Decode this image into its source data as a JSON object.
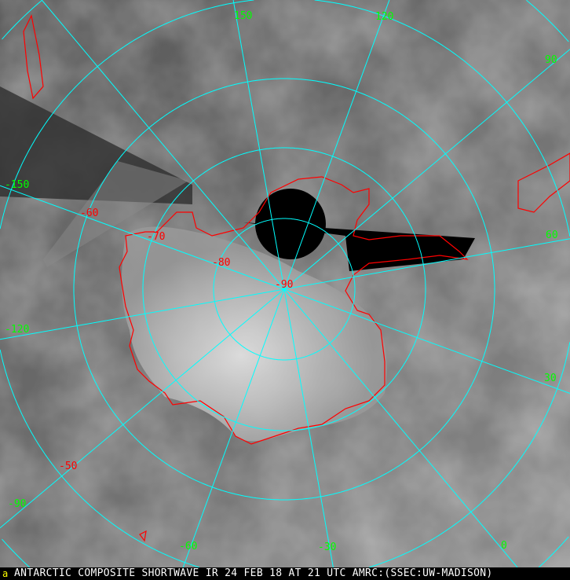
{
  "caption": "ANTARCTIC COMPOSITE SHORTWAVE IR 24 FEB 18 AT 21 UTC AMRC:(SSEC:UW-MADISON)",
  "logo_text": "a",
  "colors": {
    "graticule": "#00ffff",
    "coastline": "#ff0000",
    "longitude_labels": "#00ff00",
    "latitude_labels": "#ff0000",
    "caption_bg": "#000000"
  },
  "map": {
    "projection": "polar stereographic (south pole)",
    "latitude_labels": [
      "-90",
      "-80",
      "-70",
      "-60",
      "-50"
    ],
    "longitude_labels": [
      "150",
      "120",
      "90",
      "60",
      "30",
      "0",
      "-30",
      "-60",
      "-90",
      "-120",
      "-150"
    ]
  }
}
